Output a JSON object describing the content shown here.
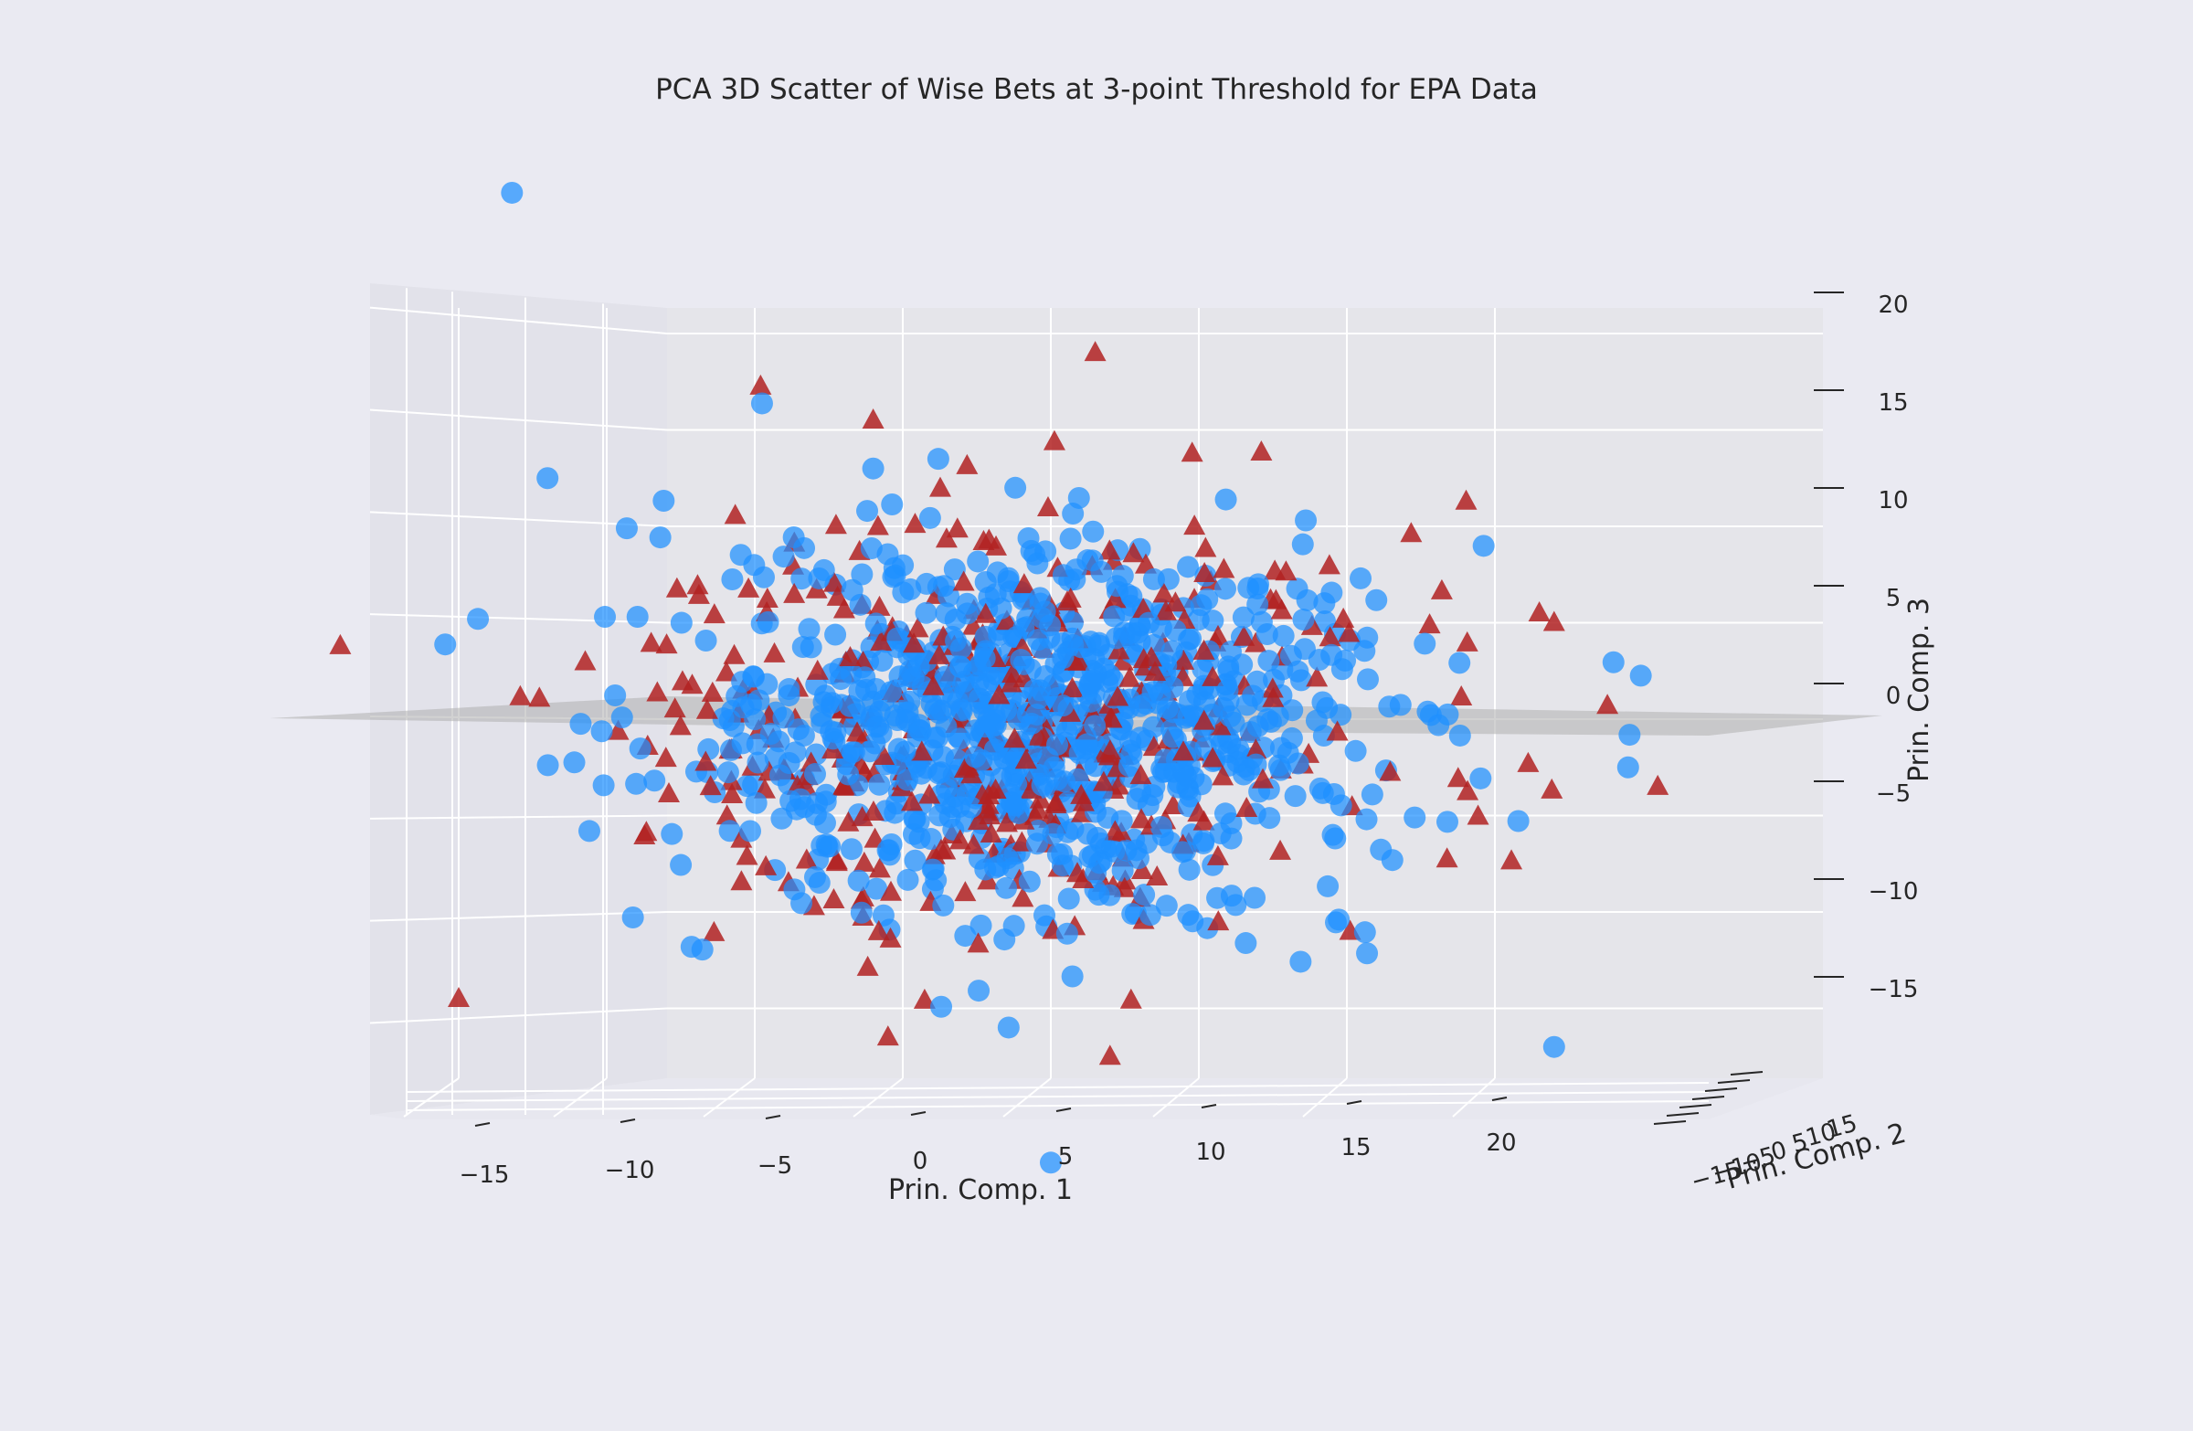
{
  "chart_data": {
    "type": "scatter",
    "projection": "3d",
    "title": "PCA 3D Scatter of Wise Bets at 3-point Threshold for EPA Data",
    "xlabel": "Prin. Comp. 1",
    "ylabel": "Prin. Comp. 2",
    "zlabel": "Prin. Comp. 3",
    "xticks": [
      "−15",
      "−10",
      "−5",
      "0",
      "5",
      "10",
      "15",
      "20"
    ],
    "yticks": [
      "−15",
      "−10",
      "−5",
      "0",
      "5",
      "10",
      "15"
    ],
    "zticks": [
      "20",
      "15",
      "10",
      "5",
      "0",
      "−5",
      "−10",
      "−15"
    ],
    "xlim": [
      -18,
      25
    ],
    "zlim": [
      -19,
      21
    ],
    "grid": true,
    "legend": "none",
    "background_color": "#eaeaf2",
    "pane_color": "#e5e5ea",
    "grid_color": "#ffffff",
    "plane_color": "#b4b4b4",
    "series": [
      {
        "marker": "circle",
        "color": "#1e90ff",
        "count": 880,
        "center": [
          4.5,
          0,
          -0.5
        ],
        "spread": [
          6,
          0,
          4.8
        ],
        "extra_points": [
          [
            -13.2,
            0,
            27.3
          ],
          [
            5.0,
            0,
            -23.0
          ],
          [
            22.0,
            0,
            -17.0
          ],
          [
            24.5,
            0,
            -2.5
          ],
          [
            -12.0,
            0,
            12.5
          ],
          [
            3.8,
            0,
            12.0
          ],
          [
            1.2,
            0,
            13.5
          ],
          [
            -1.0,
            0,
            13.0
          ]
        ]
      },
      {
        "marker": "triangle",
        "color": "#b22222",
        "count": 430,
        "center": [
          3.5,
          0,
          0
        ],
        "spread": [
          6.2,
          0,
          5.5
        ],
        "extra_points": [
          [
            6.5,
            0,
            19.0
          ],
          [
            -1.0,
            0,
            15.5
          ],
          [
            -19.0,
            0,
            3.8
          ],
          [
            23.8,
            0,
            0.7
          ],
          [
            -0.5,
            0,
            -16.5
          ],
          [
            7.0,
            0,
            -17.5
          ],
          [
            25.5,
            0,
            -3.5
          ],
          [
            22.0,
            0,
            5.0
          ],
          [
            21.5,
            0,
            5.5
          ],
          [
            -15.0,
            0,
            -14.5
          ]
        ]
      }
    ]
  }
}
